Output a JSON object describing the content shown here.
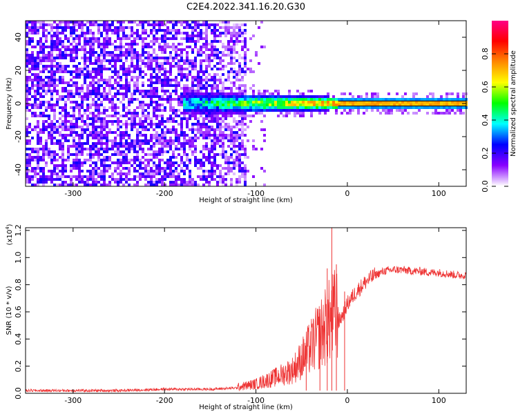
{
  "chart_data": [
    {
      "type": "heatmap",
      "title": "C2E4.2022.341.16.20.G30",
      "xlabel": "Height of straight line (km)",
      "ylabel": "Frequency (Hz)",
      "xlim": [
        -352,
        130
      ],
      "ylim": [
        -50,
        50
      ],
      "x_ticks": [
        -300,
        -200,
        -100,
        0,
        100
      ],
      "x_tick_labels": [
        "-300",
        "-200",
        "-100",
        "0",
        "100"
      ],
      "y_ticks": [
        40,
        20,
        0,
        -20,
        -40
      ],
      "y_tick_labels": [
        "40",
        "20",
        "0",
        "-20",
        "-40"
      ],
      "colorbar": {
        "label": "Normalized spectral amplitude",
        "range": [
          0,
          1
        ],
        "ticks": [
          0.0,
          0.2,
          0.4,
          0.6,
          0.8
        ],
        "tick_labels": [
          "0.0",
          "0.2",
          "0.4",
          "0.6",
          "0.8"
        ],
        "colormap": [
          "#ffffff",
          "#8800ff",
          "#0000ff",
          "#00ffff",
          "#00ff00",
          "#ffff00",
          "#ff8800",
          "#ff0000",
          "#ff0088"
        ]
      },
      "features": {
        "broadband_noise_x_range": [
          -352,
          -110
        ],
        "broadband_noise_level": 0.15,
        "signal_frequency_hz": 0,
        "signal_onset_x": -180,
        "strong_band_start_x": -10,
        "strong_band_level": 0.85
      }
    },
    {
      "type": "line",
      "xlabel": "Height of straight line (km)",
      "ylabel": "SNR (10 * v/v)",
      "y_scale_label": "(x10",
      "y_scale_exponent": "4",
      "y_scale_close": ")",
      "xlim": [
        -352,
        130
      ],
      "ylim": [
        0,
        1.22
      ],
      "x_ticks": [
        -300,
        -200,
        -100,
        0,
        100
      ],
      "x_tick_labels": [
        "-300",
        "-200",
        "-100",
        "0",
        "100"
      ],
      "y_ticks": [
        0.0,
        0.2,
        0.4,
        0.6,
        0.8,
        1.0,
        1.2
      ],
      "y_tick_labels": [
        "0.0",
        "0.2",
        "0.4",
        "0.6",
        "0.8",
        "1.0",
        "1.2"
      ],
      "color": "#ee3333",
      "series": [
        {
          "x": [
            -352,
            -300,
            -250,
            -200,
            -150,
            -120,
            -100,
            -80,
            -60,
            -50,
            -40,
            -30,
            -25,
            -20,
            -15,
            -10,
            -5,
            0,
            10,
            20,
            30,
            40,
            50,
            60,
            70,
            80,
            90,
            100,
            110,
            120,
            130
          ],
          "values": [
            0.02,
            0.02,
            0.02,
            0.03,
            0.03,
            0.04,
            0.06,
            0.1,
            0.15,
            0.22,
            0.3,
            0.38,
            0.42,
            0.46,
            0.5,
            0.52,
            0.58,
            0.66,
            0.75,
            0.82,
            0.87,
            0.9,
            0.91,
            0.91,
            0.9,
            0.9,
            0.89,
            0.89,
            0.88,
            0.87,
            0.87
          ]
        }
      ],
      "spikes": [
        {
          "x": -17,
          "value": 1.22
        },
        {
          "x": -22,
          "value": 0.92
        },
        {
          "x": -12,
          "value": 0.95
        },
        {
          "x": -3,
          "value": 0.75
        },
        {
          "x": -30,
          "value": 0.62
        },
        {
          "x": -45,
          "value": 0.35
        }
      ]
    }
  ]
}
